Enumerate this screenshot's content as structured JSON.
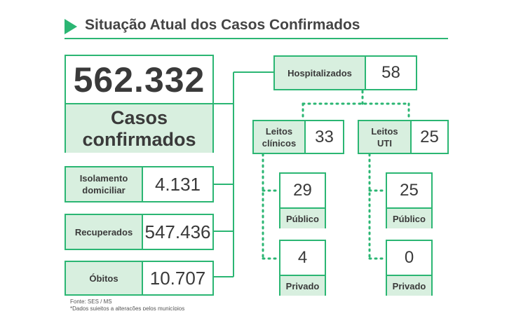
{
  "header": {
    "title": "Situação Atual dos Casos Confirmados"
  },
  "total": {
    "value": "562.332",
    "label_line1": "Casos",
    "label_line2": "confirmados"
  },
  "left_boxes": [
    {
      "label_line1": "Isolamento",
      "label_line2": "domiciliar",
      "value": "4.131"
    },
    {
      "label_line1": "Recuperados",
      "label_line2": "",
      "value": "547.436"
    },
    {
      "label_line1": "Óbitos",
      "label_line2": "",
      "value": "10.707"
    }
  ],
  "hospital": {
    "label": "Hospitalizados",
    "value": "58"
  },
  "clinical": {
    "label_line1": "Leitos",
    "label_line2": "clínicos",
    "value": "33",
    "public_value": "29",
    "public_label": "Público",
    "private_value": "4",
    "private_label": "Privado"
  },
  "icu": {
    "label_line1": "Leitos",
    "label_line2": "UTI",
    "value": "25",
    "public_value": "25",
    "public_label": "Público",
    "private_value": "0",
    "private_label": "Privado"
  },
  "footer": {
    "source": "Fonte: SES / MS",
    "note": "*Dados sujeitos a alterações pelos municípios"
  },
  "colors": {
    "accent": "#2bb673",
    "fill": "#d8efdf"
  }
}
